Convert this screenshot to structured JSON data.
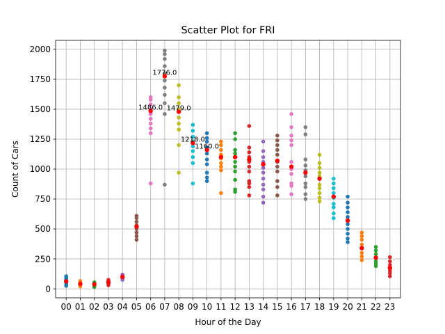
{
  "chart_data": {
    "type": "scatter",
    "title": "Scatter Plot for FRI",
    "xlabel": "Hour of the Day",
    "ylabel": "Count of Cars",
    "categories": [
      "00",
      "01",
      "02",
      "03",
      "04",
      "05",
      "06",
      "07",
      "08",
      "09",
      "10",
      "11",
      "12",
      "13",
      "14",
      "15",
      "16",
      "17",
      "18",
      "19",
      "20",
      "21",
      "22",
      "23"
    ],
    "yticks": [
      0,
      250,
      500,
      750,
      1000,
      1250,
      1500,
      1750,
      2000
    ],
    "ylim": [
      -75,
      2075
    ],
    "grid": true,
    "colors": [
      "#1f77b4",
      "#ff7f0e",
      "#2ca02c",
      "#d62728",
      "#9467bd",
      "#8c564b",
      "#e377c2",
      "#7f7f7f",
      "#bcbd22",
      "#17becf"
    ],
    "mean_color": "#ff0000",
    "series": [
      {
        "hour": "00",
        "values": [
          25,
          40,
          55,
          70,
          85,
          95,
          105
        ],
        "mean": 62
      },
      {
        "hour": "01",
        "values": [
          20,
          35,
          50,
          65
        ],
        "mean": 42
      },
      {
        "hour": "02",
        "values": [
          15,
          25,
          40,
          55
        ],
        "mean": 38
      },
      {
        "hour": "03",
        "values": [
          30,
          45,
          60,
          75
        ],
        "mean": 55
      },
      {
        "hour": "04",
        "values": [
          75,
          90,
          105,
          120
        ],
        "mean": 100
      },
      {
        "hour": "05",
        "values": [
          410,
          440,
          470,
          500,
          530,
          560,
          590,
          610
        ],
        "mean": 520
      },
      {
        "hour": "06",
        "values": [
          880,
          1300,
          1340,
          1380,
          1420,
          1460,
          1500,
          1540,
          1580,
          1600
        ],
        "mean": 1486
      },
      {
        "hour": "07",
        "values": [
          870,
          1460,
          1550,
          1620,
          1680,
          1740,
          1800,
          1860,
          1920,
          1960,
          1990
        ],
        "mean": 1776
      },
      {
        "hour": "08",
        "values": [
          970,
          1200,
          1330,
          1380,
          1430,
          1500,
          1550,
          1600,
          1700
        ],
        "mean": 1479
      },
      {
        "hour": "09",
        "values": [
          880,
          1050,
          1100,
          1150,
          1190,
          1230,
          1270,
          1320,
          1370
        ],
        "mean": 1218
      },
      {
        "hour": "10",
        "values": [
          900,
          930,
          970,
          1040,
          1080,
          1130,
          1180,
          1230,
          1260,
          1300
        ],
        "mean": 1160
      },
      {
        "hour": "11",
        "values": [
          800,
          990,
          1020,
          1050,
          1090,
          1120,
          1160,
          1200,
          1230
        ],
        "mean": 1100
      },
      {
        "hour": "12",
        "values": [
          810,
          830,
          910,
          980,
          1020,
          1060,
          1100,
          1130,
          1160,
          1250,
          1300
        ],
        "mean": 1100
      },
      {
        "hour": "13",
        "values": [
          780,
          850,
          880,
          900,
          980,
          1020,
          1060,
          1100,
          1140,
          1180,
          1360
        ],
        "mean": 1080
      },
      {
        "hour": "14",
        "values": [
          720,
          770,
          830,
          870,
          920,
          970,
          1010,
          1060,
          1100,
          1150,
          1230
        ],
        "mean": 1040
      },
      {
        "hour": "15",
        "values": [
          780,
          850,
          900,
          980,
          1020,
          1060,
          1120,
          1160,
          1200,
          1240,
          1280
        ],
        "mean": 1070
      },
      {
        "hour": "16",
        "values": [
          790,
          860,
          880,
          960,
          1000,
          1060,
          1200,
          1240,
          1280,
          1350,
          1460
        ],
        "mean": 1020
      },
      {
        "hour": "17",
        "values": [
          750,
          790,
          850,
          880,
          940,
          990,
          1030,
          1080,
          1290,
          1350
        ],
        "mean": 970
      },
      {
        "hour": "18",
        "values": [
          730,
          760,
          800,
          840,
          870,
          940,
          970,
          1010,
          1050,
          1120
        ],
        "mean": 920
      },
      {
        "hour": "19",
        "values": [
          590,
          630,
          680,
          710,
          760,
          800,
          840,
          880,
          920
        ],
        "mean": 770
      },
      {
        "hour": "20",
        "values": [
          390,
          420,
          460,
          500,
          540,
          600,
          640,
          680,
          720,
          770
        ],
        "mean": 570
      },
      {
        "hour": "21",
        "values": [
          240,
          270,
          300,
          340,
          370,
          410,
          440,
          470
        ],
        "mean": 340
      },
      {
        "hour": "22",
        "values": [
          190,
          210,
          230,
          260,
          290,
          320,
          350
        ],
        "mean": 260
      },
      {
        "hour": "23",
        "values": [
          105,
          130,
          150,
          170,
          200,
          230,
          265
        ],
        "mean": 175
      }
    ],
    "annotations": [
      {
        "hour": "06",
        "value": 1486,
        "text": "1486.0"
      },
      {
        "hour": "07",
        "value": 1776,
        "text": "1776.0"
      },
      {
        "hour": "08",
        "value": 1479,
        "text": "1479.0"
      },
      {
        "hour": "09",
        "value": 1218,
        "text": "1218.0"
      },
      {
        "hour": "10",
        "value": 1160,
        "text": "1160.0"
      }
    ]
  }
}
